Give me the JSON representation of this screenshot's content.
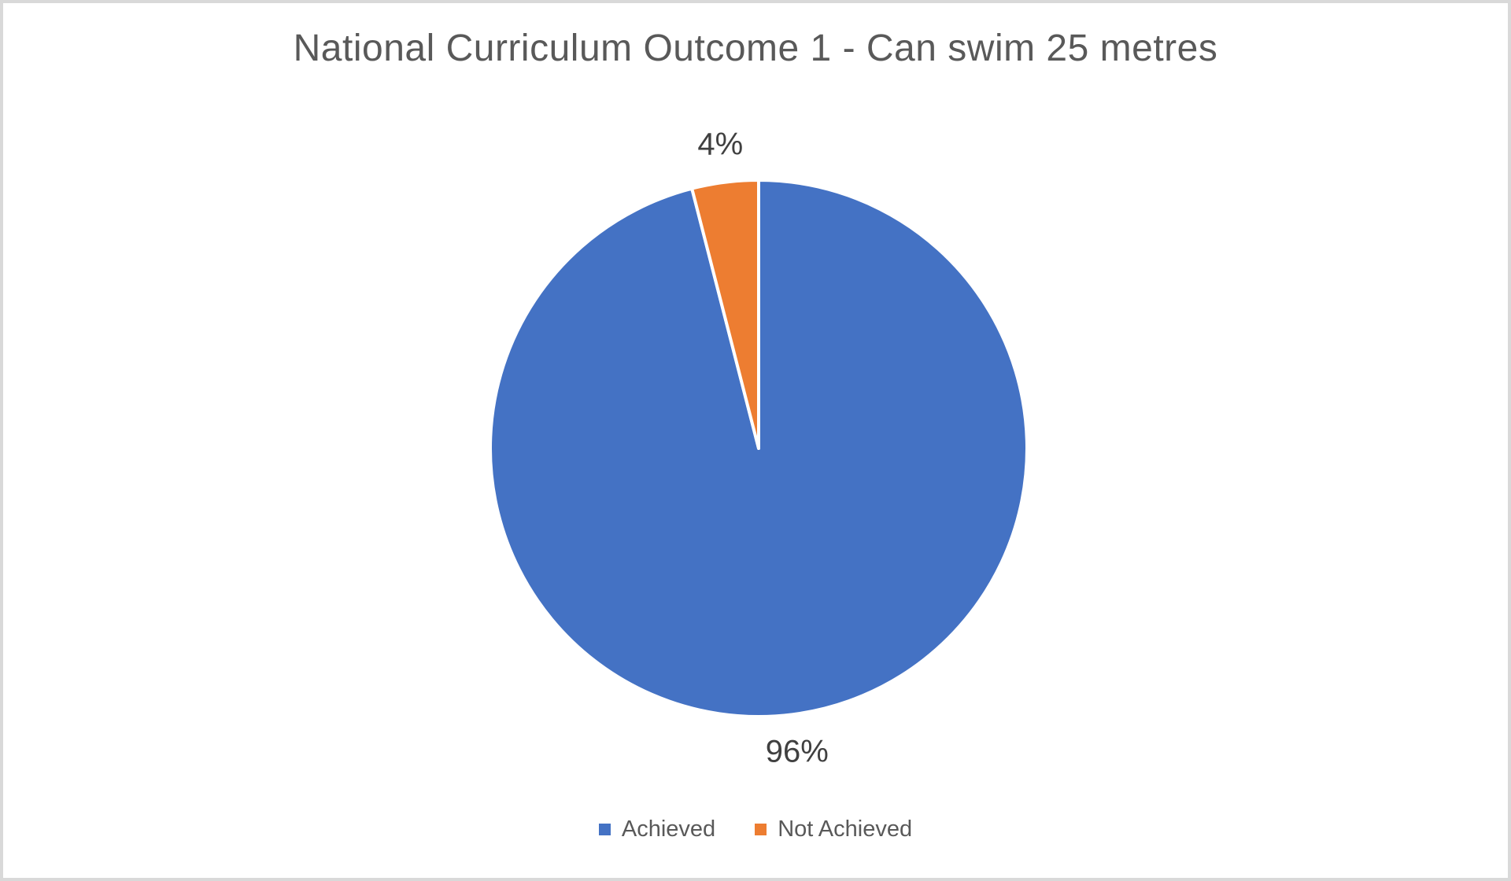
{
  "frame": {
    "background_color": "#FFFFFF",
    "border_color": "#D9D9D9"
  },
  "chart_data": {
    "type": "pie",
    "title": "National Curriculum Outcome 1 - Can swim 25 metres",
    "categories": [
      "Achieved",
      "Not Achieved"
    ],
    "values": [
      96,
      4
    ],
    "data_labels": [
      "96%",
      "4%"
    ],
    "colors": [
      "#4472C4",
      "#ED7D31"
    ],
    "slice_border_color": "#FFFFFF",
    "start_angle_deg": 0,
    "direction": "clockwise",
    "legend": {
      "position": "bottom",
      "entries": [
        "Achieved",
        "Not Achieved"
      ]
    },
    "style": {
      "title_color": "#595959",
      "data_label_color": "#404040",
      "legend_text_color": "#595959"
    }
  }
}
